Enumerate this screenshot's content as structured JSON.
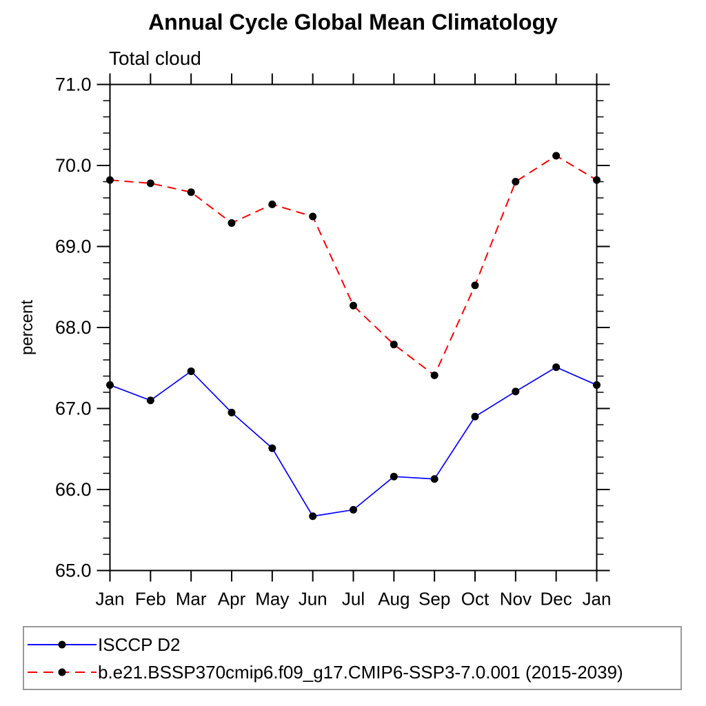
{
  "header": {
    "title": "Annual Cycle Global Mean Climatology",
    "subtitle": "Total cloud"
  },
  "colors": {
    "obs_line": "#0000ff",
    "model_line": "#ff0000",
    "marker": "#000000",
    "axis": "#000000",
    "legend_border": "#999999"
  },
  "chart_data": {
    "type": "line",
    "title": "Annual Cycle Global Mean Climatology",
    "subtitle": "Total cloud",
    "xlabel": "",
    "ylabel": "percent",
    "categories": [
      "Jan",
      "Feb",
      "Mar",
      "Apr",
      "May",
      "Jun",
      "Jul",
      "Aug",
      "Sep",
      "Oct",
      "Nov",
      "Dec",
      "Jan"
    ],
    "ylim": [
      65.0,
      71.0
    ],
    "ytick_labels": [
      "65.0",
      "66.0",
      "67.0",
      "68.0",
      "69.0",
      "70.0",
      "71.0"
    ],
    "ytick_step": 1.0,
    "yminor_step": 0.2,
    "grid": false,
    "legend_position": "bottom",
    "series": [
      {
        "name": "ISCCP D2",
        "color": "#0000ff",
        "style": "solid",
        "marker": "filled-circle",
        "marker_color": "#000000",
        "values": [
          67.29,
          67.1,
          67.46,
          66.95,
          66.51,
          65.67,
          65.75,
          66.16,
          66.13,
          66.9,
          67.21,
          67.51,
          67.29
        ]
      },
      {
        "name": "b.e21.BSSP370cmip6.f09_g17.CMIP6-SSP3-7.0.001 (2015-2039)",
        "color": "#ff0000",
        "style": "dashed",
        "marker": "filled-circle",
        "marker_color": "#000000",
        "values": [
          69.82,
          69.78,
          69.67,
          69.29,
          69.52,
          69.37,
          68.27,
          67.79,
          67.41,
          68.52,
          69.8,
          70.12,
          69.82
        ]
      }
    ]
  }
}
